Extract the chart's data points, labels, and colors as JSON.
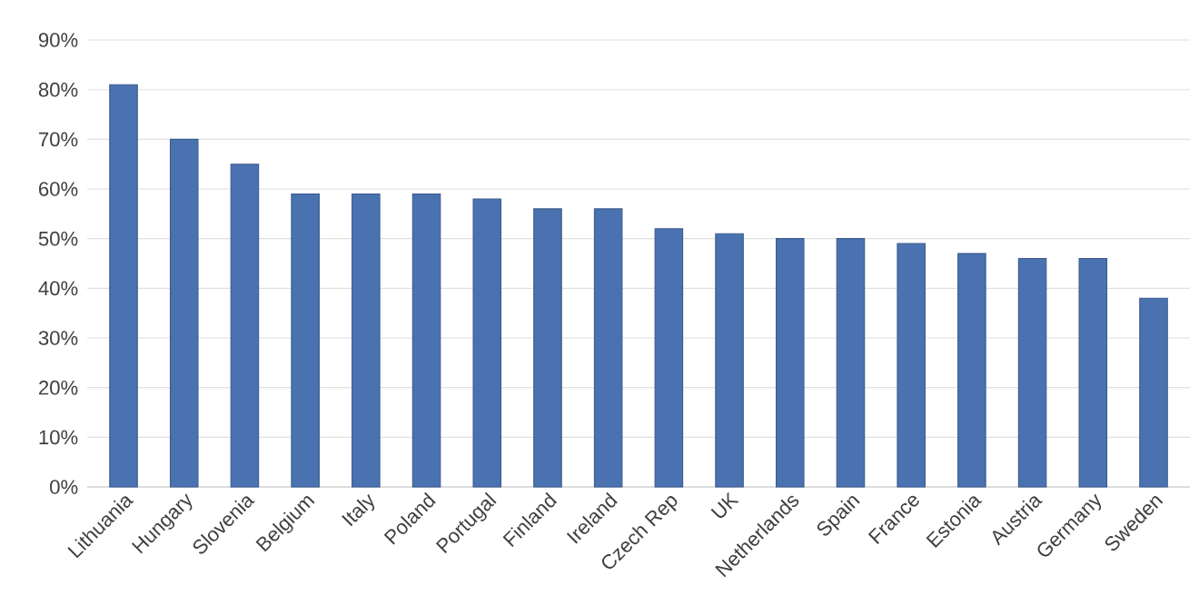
{
  "chart_data": {
    "type": "bar",
    "categories": [
      "Lithuania",
      "Hungary",
      "Slovenia",
      "Belgium",
      "Italy",
      "Poland",
      "Portugal",
      "Finland",
      "Ireland",
      "Czech Rep",
      "UK",
      "Netherlands",
      "Spain",
      "France",
      "Estonia",
      "Austria",
      "Germany",
      "Sweden"
    ],
    "values": [
      81,
      70,
      65,
      59,
      59,
      59,
      58,
      56,
      56,
      52,
      51,
      50,
      50,
      49,
      47,
      46,
      46,
      38
    ],
    "color": "#4a72b0",
    "ylim": [
      0,
      90
    ],
    "yticks": [
      {
        "value": 0,
        "label": "0%"
      },
      {
        "value": 10,
        "label": "10%"
      },
      {
        "value": 20,
        "label": "20%"
      },
      {
        "value": 30,
        "label": "30%"
      },
      {
        "value": 40,
        "label": "40%"
      },
      {
        "value": 50,
        "label": "50%"
      },
      {
        "value": 60,
        "label": "60%"
      },
      {
        "value": 70,
        "label": "70%"
      },
      {
        "value": 80,
        "label": "80%"
      },
      {
        "value": 90,
        "label": "90%"
      }
    ],
    "grid": "y"
  }
}
